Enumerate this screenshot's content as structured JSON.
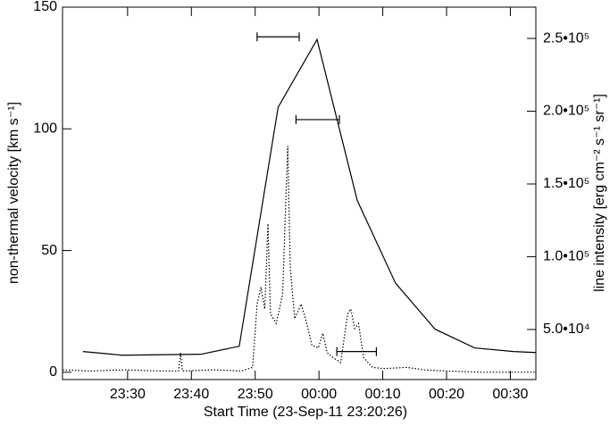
{
  "chart_data": {
    "type": "line",
    "x_label": "Start Time (23-Sep-11 23:20:26)",
    "y_label": "non-thermal velocity [km s⁻¹]",
    "y2_label": "line intensity [erg cm⁻² s⁻¹ sr⁻¹]",
    "xlim": [
      19.8,
      94.0
    ],
    "xticks": [
      {
        "value": 30,
        "label": "23:30"
      },
      {
        "value": 40,
        "label": "23:40"
      },
      {
        "value": 50,
        "label": "23:50"
      },
      {
        "value": 60,
        "label": "00:00"
      },
      {
        "value": 70,
        "label": "00:10"
      },
      {
        "value": 80,
        "label": "00:20"
      },
      {
        "value": 90,
        "label": "00:30"
      }
    ],
    "ylim": [
      -3,
      150
    ],
    "yticks": [
      0,
      50,
      100,
      150
    ],
    "y2lim": [
      15600,
      271500
    ],
    "y2ticks": [
      {
        "value": 50000,
        "label": "5.0•10⁴"
      },
      {
        "value": 100000,
        "label": "1.0•10⁵"
      },
      {
        "value": 150000,
        "label": "1.5•10⁵"
      },
      {
        "value": 200000,
        "label": "2.0•10⁵"
      },
      {
        "value": 250000,
        "label": "2.5•10⁵"
      }
    ],
    "series": [
      {
        "style": "solid",
        "color": "#000000",
        "x": [
          23.0,
          29.2,
          41.5,
          47.5,
          53.6,
          59.7,
          66.0,
          72.0,
          78.2,
          84.4,
          90.5,
          94.0
        ],
        "values": [
          8.5,
          7.0,
          7.4,
          10.7,
          108.9,
          136.7,
          70.6,
          36.6,
          17.7,
          10.0,
          8.5,
          8.1
        ]
      },
      {
        "style": "dotted",
        "color": "#000000",
        "x": [
          19.8,
          24.0,
          29.6,
          35.2,
          38.0,
          38.3,
          38.6,
          43.6,
          47.8,
          49.6,
          50.3,
          50.9,
          51.5,
          52.0,
          52.4,
          53.3,
          54.3,
          55.1,
          55.5,
          56.2,
          57.2,
          57.9,
          58.9,
          59.9,
          60.6,
          61.3,
          62.2,
          63.4,
          64.5,
          65.0,
          65.6,
          66.2,
          67.0,
          68.4,
          70.2,
          73.7,
          76.5,
          80.0,
          85.6,
          94.0
        ],
        "values": [
          1,
          0.5,
          1,
          0.5,
          0.5,
          8,
          0.5,
          1,
          0.5,
          2,
          28,
          35,
          26,
          61,
          24,
          20,
          32,
          93,
          43,
          22,
          28,
          22,
          11,
          10,
          16,
          8,
          6,
          4,
          24,
          26,
          18,
          20,
          6,
          2,
          1.5,
          2,
          1,
          0.5,
          0,
          0
        ]
      }
    ],
    "error_bars": [
      {
        "x": 53.6,
        "xerr": 3.3,
        "y": 137.8
      },
      {
        "x": 59.8,
        "xerr": 3.4,
        "y": 103.8
      },
      {
        "x": 65.9,
        "xerr": 3.1,
        "y": 8.5
      }
    ]
  }
}
